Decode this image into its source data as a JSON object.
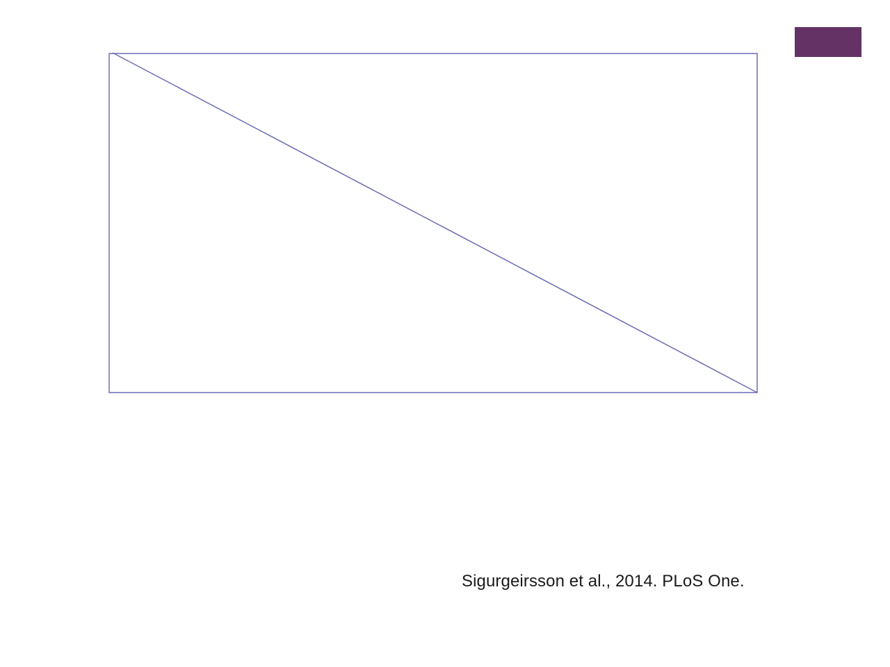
{
  "slide": {
    "citation": "Sigurgeirsson et al., 2014. PLoS One."
  },
  "colors": {
    "accent": "#643264",
    "placeholder_stroke": "#6b6bb5",
    "text": "#1a1a1a",
    "background": "#ffffff"
  }
}
